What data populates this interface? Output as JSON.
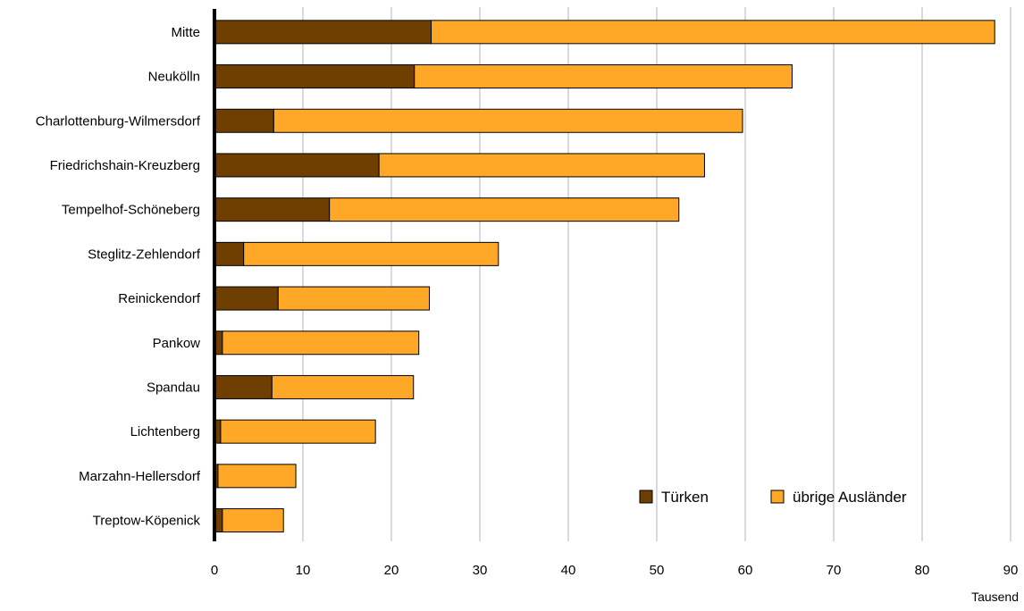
{
  "chart_data": {
    "type": "bar",
    "orientation": "horizontal",
    "stacked": true,
    "categories": [
      "Mitte",
      "Neukölln",
      "Charlottenburg-Wilmersdorf",
      "Friedrichshain-Kreuzberg",
      "Tempelhof-Schöneberg",
      "Steglitz-Zehlendorf",
      "Reinickendorf",
      "Pankow",
      "Spandau",
      "Lichtenberg",
      "Marzahn-Hellersdorf",
      "Treptow-Köpenick"
    ],
    "series": [
      {
        "name": "Türken",
        "color": "#6e3f00",
        "values": [
          24.5,
          22.6,
          6.7,
          18.6,
          13.0,
          3.3,
          7.2,
          0.9,
          6.5,
          0.7,
          0.4,
          0.9
        ]
      },
      {
        "name": "übrige Ausländer",
        "color": "#ffa726",
        "values": [
          63.7,
          42.7,
          53.0,
          36.8,
          39.5,
          28.8,
          17.1,
          22.2,
          16.0,
          17.5,
          8.8,
          6.9
        ]
      }
    ],
    "xlim": [
      0,
      90
    ],
    "xticks": [
      0,
      10,
      20,
      30,
      40,
      50,
      60,
      70,
      80,
      90
    ],
    "xunit": "Tausend",
    "grid": "vertical",
    "legend_position": "bottom-right"
  }
}
